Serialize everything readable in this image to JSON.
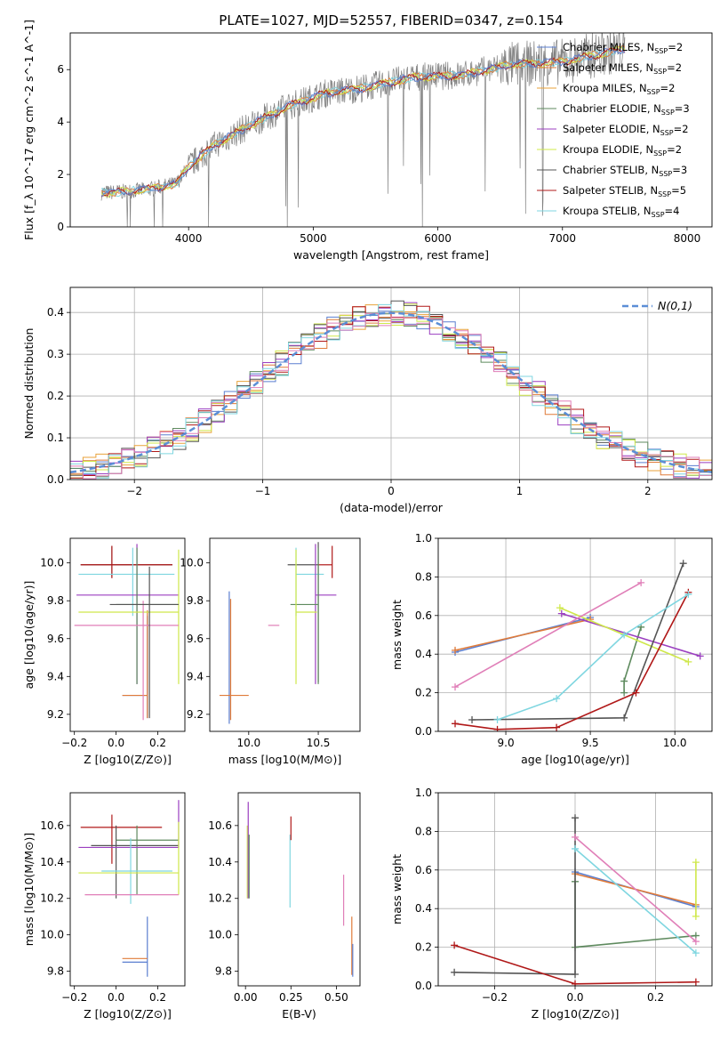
{
  "figure_title": "PLATE=1027, MJD=52557, FIBERID=0347, z=0.154",
  "legend_colors": {
    "Chabrier MILES": "#5b7fd0",
    "Salpeter MILES": "#e07b39",
    "Kroupa MILES": "#e8a23a",
    "Chabrier ELODIE": "#5e8a5e",
    "Salpeter ELODIE": "#9b3fc0",
    "Kroupa ELODIE": "#cfe84a",
    "Chabrier STELIB": "#555555",
    "Salpeter STELIB": "#b01818",
    "Kroupa STELIB": "#7fd6e0",
    "data": "#808080",
    "gaussian": "#5b8ed6",
    "pink": "#e07fb8"
  },
  "chart_data": [
    {
      "id": "spectrum",
      "type": "line",
      "xlabel": "wavelength [Angstrom, rest frame]",
      "ylabel": "Flux [f_λ 10^-17 erg cm^-2 s^-1 A^-1]",
      "xlim": [
        3050,
        8200
      ],
      "ylim": [
        0,
        7.4
      ],
      "xticks": [
        4000,
        5000,
        6000,
        7000,
        8000
      ],
      "yticks": [
        0,
        2,
        4,
        6
      ],
      "legend_position": "upper-right",
      "series": [
        {
          "name": "Chabrier MILES, N_SSP=2"
        },
        {
          "name": "Salpeter MILES, N_SSP=2"
        },
        {
          "name": "Kroupa MILES, N_SSP=2"
        },
        {
          "name": "Chabrier ELODIE, N_SSP=3"
        },
        {
          "name": "Salpeter ELODIE, N_SSP=2"
        },
        {
          "name": "Kroupa ELODIE, N_SSP=2"
        },
        {
          "name": "Chabrier STELIB, N_SSP=3"
        },
        {
          "name": "Salpeter STELIB, N_SSP=5"
        },
        {
          "name": "Kroupa STELIB, N_SSP=4"
        }
      ],
      "continuum": {
        "x": [
          3300,
          3500,
          3700,
          3900,
          4000,
          4200,
          4500,
          4800,
          5100,
          5400,
          5800,
          6200,
          6600,
          7000,
          7500
        ],
        "y": [
          1.3,
          1.35,
          1.45,
          1.65,
          2.3,
          3.1,
          3.9,
          4.6,
          5.1,
          5.3,
          5.7,
          5.8,
          6.2,
          6.3,
          6.8
        ]
      }
    },
    {
      "id": "residuals",
      "type": "histogram",
      "xlabel": "(data-model)/error",
      "ylabel": "Normed distribution",
      "xlim": [
        -2.5,
        2.5
      ],
      "ylim": [
        0,
        0.46
      ],
      "xticks": [
        -2,
        -1,
        0,
        1,
        2
      ],
      "yticks": [
        0.0,
        0.1,
        0.2,
        0.3,
        0.4
      ],
      "grid": true,
      "gaussian_label": "N(0,1)",
      "legend_position": "upper-right"
    },
    {
      "id": "z-age",
      "type": "errorbar",
      "xlabel": "Z [log10(Z/Z⊙)]",
      "ylabel": "age  [log10(age/yr)]",
      "xlim": [
        -0.22,
        0.33
      ],
      "ylim": [
        9.11,
        10.13
      ],
      "xticks": [
        -0.2,
        0.0,
        0.2
      ],
      "yticks": [
        9.2,
        9.4,
        9.6,
        9.8,
        10.0
      ],
      "points": [
        {
          "color": "Chabrier MILES",
          "x": 0.15,
          "y": 9.3,
          "xerr": [
            0.12,
            0.0
          ],
          "yerr": [
            0.12,
            0.42
          ]
        },
        {
          "color": "Salpeter MILES",
          "x": 0.15,
          "y": 9.3,
          "xerr": [
            0.12,
            0.0
          ],
          "yerr": [
            0.12,
            0.45
          ]
        },
        {
          "color": "Chabrier STELIB",
          "x": -0.02,
          "y": 9.99,
          "xerr": [
            0.15,
            0.29
          ],
          "yerr": [
            0.07,
            0.1
          ]
        },
        {
          "color": "Salpeter STELIB",
          "x": -0.02,
          "y": 9.99,
          "xerr": [
            0.15,
            0.29
          ],
          "yerr": [
            0.07,
            0.1
          ]
        },
        {
          "color": "Kroupa STELIB",
          "x": 0.08,
          "y": 9.94,
          "xerr": [
            0.26,
            0.2
          ],
          "yerr": [
            0.22,
            0.14
          ]
        },
        {
          "color": "Salpeter ELODIE",
          "x": 0.1,
          "y": 9.83,
          "xerr": [
            0.29,
            0.2
          ],
          "yerr": [
            0.47,
            0.27
          ]
        },
        {
          "color": "Chabrier ELODIE",
          "x": 0.1,
          "y": 9.78,
          "xerr": [
            0.1,
            0.2
          ],
          "yerr": [
            0.42,
            0.3
          ]
        },
        {
          "color": "Kroupa ELODIE",
          "x": 0.3,
          "y": 9.74,
          "xerr": [
            0.48,
            0.0
          ],
          "yerr": [
            0.38,
            0.33
          ]
        },
        {
          "color": "pink",
          "x": 0.13,
          "y": 9.67,
          "xerr": [
            0.33,
            0.17
          ],
          "yerr": [
            0.5,
            0.13
          ]
        },
        {
          "color": "Chabrier STELIB",
          "x": 0.16,
          "y": 9.78,
          "xerr": [
            0.19,
            0.14
          ],
          "yerr": [
            0.6,
            0.2
          ]
        }
      ]
    },
    {
      "id": "mass-age",
      "type": "errorbar",
      "xlabel": "mass [log10(M/M⊙)]",
      "ylabel": "",
      "xlim": [
        9.72,
        10.8
      ],
      "ylim": [
        9.11,
        10.13
      ],
      "xticks": [
        10.0,
        10.5
      ],
      "yticks": [
        9.2,
        9.4,
        9.6,
        9.8,
        10.0
      ],
      "points": [
        {
          "color": "Chabrier MILES",
          "x": 9.86,
          "y": 9.3,
          "xerr": [
            0.0,
            0.0
          ],
          "yerr": [
            0.15,
            0.55
          ]
        },
        {
          "color": "Salpeter MILES",
          "x": 9.87,
          "y": 9.3,
          "xerr": [
            0.08,
            0.13
          ],
          "yerr": [
            0.13,
            0.51
          ]
        },
        {
          "color": "Chabrier STELIB",
          "x": 10.5,
          "y": 9.99,
          "xerr": [
            0.22,
            0.0
          ],
          "yerr": [
            0.62,
            0.12
          ]
        },
        {
          "color": "Salpeter STELIB",
          "x": 10.6,
          "y": 9.99,
          "xerr": [
            0.1,
            0.0
          ],
          "yerr": [
            0.07,
            0.1
          ]
        },
        {
          "color": "Kroupa STELIB",
          "x": 10.34,
          "y": 9.94,
          "xerr": [
            0.0,
            0.2
          ],
          "yerr": [
            0.22,
            0.14
          ]
        },
        {
          "color": "Salpeter ELODIE",
          "x": 10.48,
          "y": 9.83,
          "xerr": [
            0.0,
            0.15
          ],
          "yerr": [
            0.47,
            0.27
          ]
        },
        {
          "color": "Chabrier ELODIE",
          "x": 10.5,
          "y": 9.78,
          "xerr": [
            0.2,
            0.0
          ],
          "yerr": [
            0.42,
            0.3
          ]
        },
        {
          "color": "Kroupa ELODIE",
          "x": 10.34,
          "y": 9.74,
          "xerr": [
            0.0,
            0.15
          ],
          "yerr": [
            0.38,
            0.33
          ]
        },
        {
          "color": "pink",
          "x": 10.22,
          "y": 9.67,
          "xerr": [
            0.08,
            0.0
          ],
          "yerr": [
            0.0,
            0.0
          ]
        }
      ]
    },
    {
      "id": "age-weight",
      "type": "line",
      "xlabel": "age  [log10(age/yr)]",
      "ylabel": "mass weight",
      "xlim": [
        8.6,
        10.22
      ],
      "ylim": [
        0,
        1
      ],
      "xticks": [
        9.0,
        9.5,
        10.0
      ],
      "yticks": [
        0.0,
        0.2,
        0.4,
        0.6,
        0.8,
        1.0
      ],
      "grid": true,
      "series": [
        {
          "color": "Chabrier MILES",
          "x": [
            8.7,
            9.5
          ],
          "y": [
            0.41,
            0.59
          ]
        },
        {
          "color": "Salpeter MILES",
          "x": [
            8.7,
            9.5
          ],
          "y": [
            0.42,
            0.58
          ]
        },
        {
          "color": "Chabrier ELODIE",
          "x": [
            9.7,
            9.7,
            9.8
          ],
          "y": [
            0.2,
            0.26,
            0.54
          ]
        },
        {
          "color": "Salpeter ELODIE",
          "x": [
            9.33,
            10.15
          ],
          "y": [
            0.61,
            0.39
          ]
        },
        {
          "color": "Kroupa ELODIE",
          "x": [
            9.32,
            10.08
          ],
          "y": [
            0.64,
            0.36
          ]
        },
        {
          "color": "Chabrier STELIB",
          "x": [
            8.8,
            9.7,
            10.05
          ],
          "y": [
            0.06,
            0.07,
            0.87
          ]
        },
        {
          "color": "Salpeter STELIB",
          "x": [
            8.7,
            8.95,
            9.3,
            9.77,
            10.08
          ],
          "y": [
            0.04,
            0.01,
            0.02,
            0.2,
            0.72
          ]
        },
        {
          "color": "Kroupa STELIB",
          "x": [
            8.95,
            9.3,
            9.7,
            10.08
          ],
          "y": [
            0.06,
            0.17,
            0.5,
            0.71
          ]
        },
        {
          "color": "pink",
          "x": [
            8.7,
            9.8
          ],
          "y": [
            0.23,
            0.77
          ]
        }
      ]
    },
    {
      "id": "z-mass",
      "type": "errorbar",
      "xlabel": "Z [log10(Z/Z⊙)]",
      "ylabel": "mass [log10(M/M⊙)]",
      "xlim": [
        -0.22,
        0.33
      ],
      "ylim": [
        9.72,
        10.78
      ],
      "xticks": [
        -0.2,
        0.0,
        0.2
      ],
      "yticks": [
        9.8,
        10.0,
        10.2,
        10.4,
        10.6
      ],
      "points": [
        {
          "color": "Chabrier MILES",
          "x": 0.15,
          "y": 9.85,
          "xerr": [
            0.12,
            0.0
          ],
          "yerr": [
            0.08,
            0.25
          ]
        },
        {
          "color": "Salpeter MILES",
          "x": 0.15,
          "y": 9.87,
          "xerr": [
            0.12,
            0.0
          ],
          "yerr": [
            0.0,
            0.0
          ]
        },
        {
          "color": "Salpeter STELIB",
          "x": -0.02,
          "y": 10.59,
          "xerr": [
            0.15,
            0.24
          ],
          "yerr": [
            0.2,
            0.07
          ]
        },
        {
          "color": "Chabrier STELIB",
          "x": 0.0,
          "y": 10.49,
          "xerr": [
            0.12,
            0.3
          ],
          "yerr": [
            0.29,
            0.11
          ]
        },
        {
          "color": "Chabrier ELODIE",
          "x": 0.1,
          "y": 10.52,
          "xerr": [
            0.1,
            0.2
          ],
          "yerr": [
            0.3,
            0.08
          ]
        },
        {
          "color": "Salpeter ELODIE",
          "x": 0.3,
          "y": 10.48,
          "xerr": [
            0.48,
            0.0
          ],
          "yerr": [
            0.0,
            0.26
          ]
        },
        {
          "color": "Kroupa STELIB",
          "x": 0.07,
          "y": 10.35,
          "xerr": [
            0.14,
            0.2
          ],
          "yerr": [
            0.18,
            0.18
          ]
        },
        {
          "color": "Kroupa ELODIE",
          "x": 0.3,
          "y": 10.34,
          "xerr": [
            0.48,
            0.0
          ],
          "yerr": [
            0.12,
            0.28
          ]
        },
        {
          "color": "pink",
          "x": 0.09,
          "y": 10.22,
          "xerr": [
            0.24,
            0.21
          ],
          "yerr": [
            0.0,
            0.0
          ]
        }
      ]
    },
    {
      "id": "ebv-mass",
      "type": "errorbar",
      "xlabel": "E(B-V)",
      "ylabel": "",
      "xlim": [
        -0.04,
        0.63
      ],
      "ylim": [
        9.72,
        10.78
      ],
      "xticks": [
        0.0,
        0.25,
        0.5
      ],
      "yticks": [
        9.8,
        10.0,
        10.2,
        10.4,
        10.6
      ],
      "points": [
        {
          "color": "Kroupa ELODIE",
          "x": 0.01,
          "y": 10.4,
          "yerr": [
            0.2,
            0.2
          ]
        },
        {
          "color": "Salpeter ELODIE",
          "x": 0.015,
          "y": 10.55,
          "yerr": [
            0.35,
            0.18
          ]
        },
        {
          "color": "Chabrier ELODIE",
          "x": 0.02,
          "y": 10.5,
          "yerr": [
            0.3,
            0.05
          ]
        },
        {
          "color": "Kroupa STELIB",
          "x": 0.245,
          "y": 10.35,
          "yerr": [
            0.2,
            0.2
          ]
        },
        {
          "color": "Salpeter STELIB",
          "x": 0.25,
          "y": 10.59,
          "yerr": [
            0.07,
            0.06
          ]
        },
        {
          "color": "pink",
          "x": 0.54,
          "y": 10.2,
          "yerr": [
            0.15,
            0.13
          ]
        },
        {
          "color": "Salpeter MILES",
          "x": 0.585,
          "y": 9.95,
          "yerr": [
            0.17,
            0.15
          ]
        },
        {
          "color": "Chabrier MILES",
          "x": 0.59,
          "y": 9.85,
          "yerr": [
            0.08,
            0.1
          ]
        }
      ]
    },
    {
      "id": "z-weight",
      "type": "line",
      "xlabel": "Z [log10(Z/Z⊙)]",
      "ylabel": "mass weight",
      "xlim": [
        -0.34,
        0.34
      ],
      "ylim": [
        0,
        1
      ],
      "xticks": [
        -0.2,
        0.0,
        0.2
      ],
      "yticks": [
        0.0,
        0.2,
        0.4,
        0.6,
        0.8,
        1.0
      ],
      "grid": true,
      "series": [
        {
          "color": "Chabrier MILES",
          "x": [
            0.0,
            0.3
          ],
          "y": [
            0.59,
            0.41
          ]
        },
        {
          "color": "Salpeter MILES",
          "x": [
            0.0,
            0.3
          ],
          "y": [
            0.58,
            0.42
          ]
        },
        {
          "color": "Chabrier ELODIE",
          "x": [
            0.0,
            0.0,
            0.3
          ],
          "y": [
            0.54,
            0.2,
            0.26
          ]
        },
        {
          "color": "Kroupa ELODIE",
          "x": [
            0.3,
            0.3
          ],
          "y": [
            0.36,
            0.64
          ]
        },
        {
          "color": "Chabrier STELIB",
          "x": [
            -0.3,
            0.0,
            0.0
          ],
          "y": [
            0.07,
            0.06,
            0.87
          ]
        },
        {
          "color": "Salpeter STELIB",
          "x": [
            -0.3,
            0.0,
            0.3
          ],
          "y": [
            0.21,
            0.01,
            0.02
          ]
        },
        {
          "color": "Kroupa STELIB",
          "x": [
            0.0,
            0.3
          ],
          "y": [
            0.71,
            0.17
          ]
        },
        {
          "color": "pink",
          "x": [
            0.0,
            0.3
          ],
          "y": [
            0.77,
            0.23
          ]
        }
      ]
    }
  ]
}
